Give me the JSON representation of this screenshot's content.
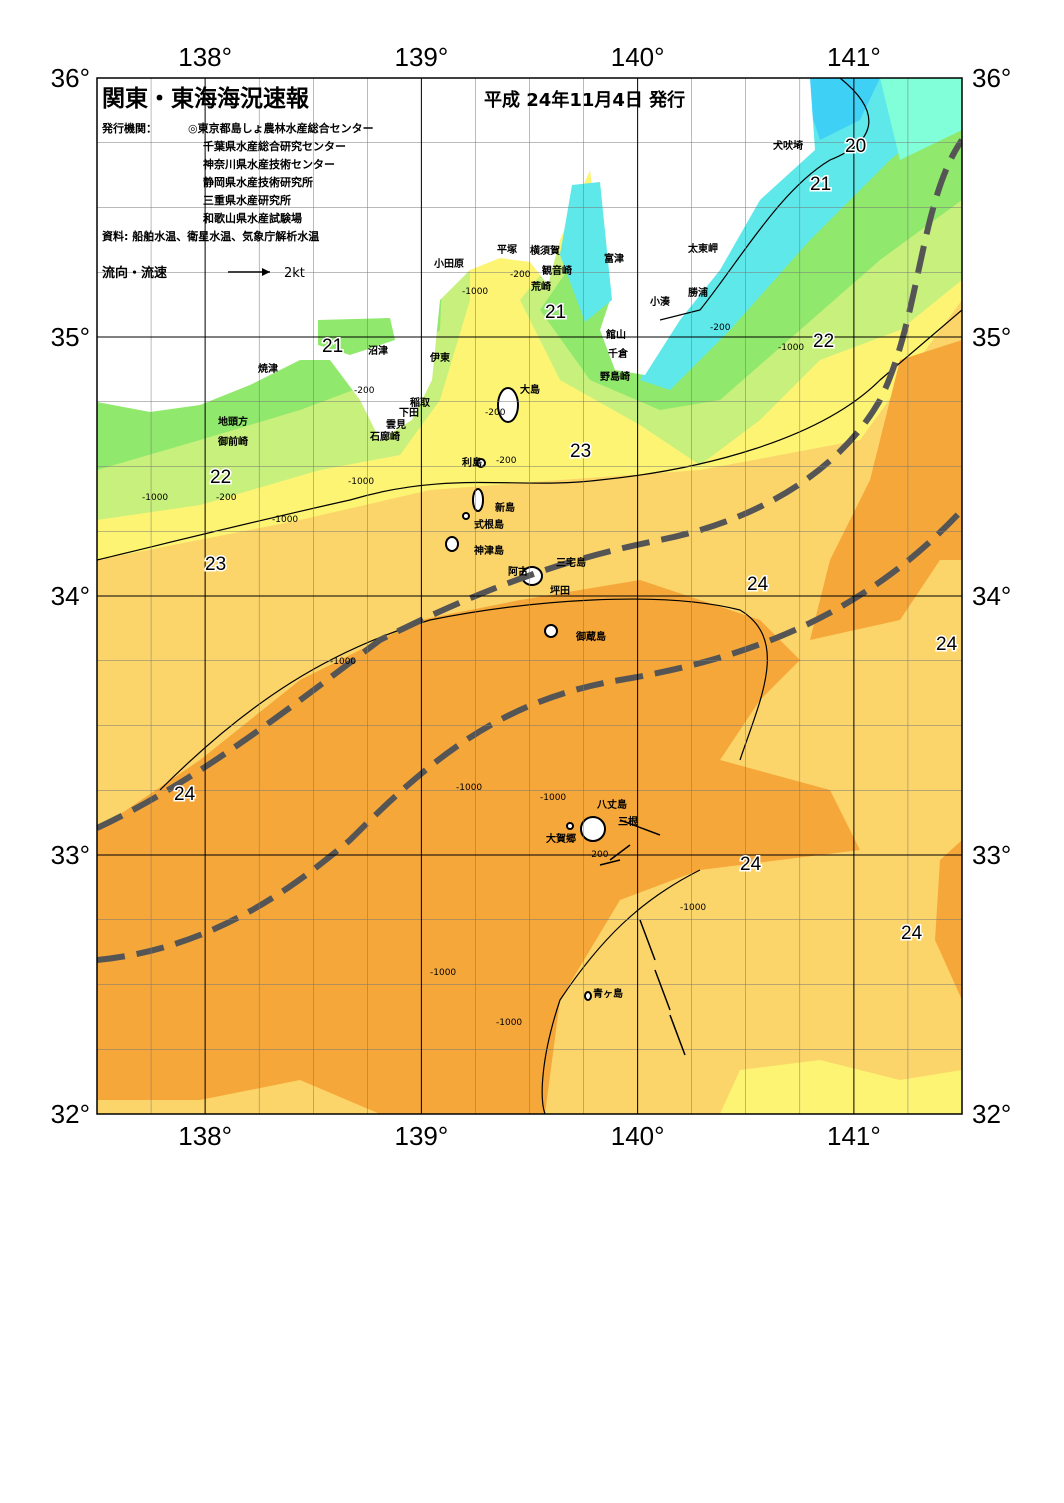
{
  "header": {
    "title": "関東・東海海況速報",
    "date": "平成 24年11月4日 発行",
    "publisher_label": "発行機関：",
    "publishers": [
      "◎東京都島しょ農林水産総合センター",
      "千葉県水産総合研究センター",
      "神奈川県水産技術センター",
      "静岡県水産技術研究所",
      "三重県水産研究所",
      "和歌山県水産試験場"
    ],
    "sources": "資料: 船舶水温、衛星水温、気象庁解析水温",
    "legend_label": "流向・流速",
    "legend_scale": "2kt"
  },
  "map": {
    "lon_ticks": [
      {
        "value": 138,
        "label": "138°"
      },
      {
        "value": 139,
        "label": "139°"
      },
      {
        "value": 140,
        "label": "140°"
      },
      {
        "value": 141,
        "label": "141°"
      }
    ],
    "lat_ticks": [
      {
        "value": 36,
        "label": "36°"
      },
      {
        "value": 35,
        "label": "35°"
      },
      {
        "value": 34,
        "label": "34°"
      },
      {
        "value": 33,
        "label": "33°"
      },
      {
        "value": 32,
        "label": "32°"
      }
    ],
    "place_names": [
      "犬吠埼",
      "太東岬",
      "勝浦",
      "小湊",
      "館山",
      "千倉",
      "野島崎",
      "富津",
      "横須賀",
      "観音崎",
      "荒崎",
      "平塚",
      "小田原",
      "沼津",
      "伊東",
      "焼津",
      "稲取",
      "下田",
      "雲見",
      "石廊崎",
      "地頭方",
      "御前崎",
      "大島",
      "利島",
      "新島",
      "式根島",
      "神津島",
      "三宅島",
      "阿古",
      "坪田",
      "御蔵島",
      "八丈島",
      "三根",
      "大賀郷",
      "青ヶ島"
    ],
    "temperature_labels": [
      "20",
      "21",
      "21",
      "21",
      "22",
      "22",
      "23",
      "23",
      "24",
      "24",
      "24",
      "24",
      "24"
    ],
    "depth_labels": [
      "-200",
      "-200",
      "-200",
      "-200",
      "-200",
      "-200",
      "-200",
      "-1000",
      "-1000",
      "-1000",
      "-1000",
      "-1000",
      "-1000",
      "-1000",
      "-1000",
      "-1000",
      "-1000",
      "-1000"
    ]
  }
}
